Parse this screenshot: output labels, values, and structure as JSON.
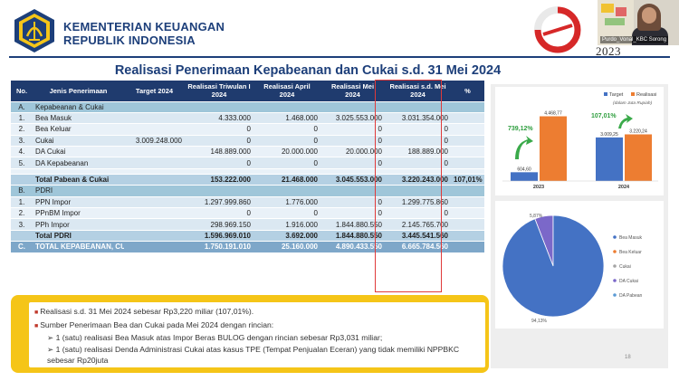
{
  "header": {
    "ministry_line1": "KEMENTERIAN KEUANGAN",
    "ministry_line2": "REPUBLIK INDONESIA",
    "year_badge": "2023",
    "video_caption": "Purdo_Vonal_KBC Sorong"
  },
  "title": "Realisasi Penerimaan Kepabeanan dan Cukai s.d. 31 Mei 2024",
  "table": {
    "headers": [
      "No.",
      "Jenis Penerimaan",
      "Target 2024",
      "Realisasi Triwulan I 2024",
      "Realisasi April 2024",
      "Realisasi Mei 2024",
      "Realisasi s.d. Mei 2024",
      "%"
    ],
    "sec_a": {
      "no": "A.",
      "label": "Kepabeanan & Cukai"
    },
    "rows_a": [
      {
        "no": "1.",
        "name": "Bea Masuk",
        "target": "",
        "tw1": "4.333.000",
        "april": "1.468.000",
        "mei": "3.025.553.000",
        "sd": "3.031.354.000",
        "pct": ""
      },
      {
        "no": "2.",
        "name": "Bea Keluar",
        "target": "",
        "tw1": "0",
        "april": "0",
        "mei": "0",
        "sd": "0",
        "pct": ""
      },
      {
        "no": "3.",
        "name": "Cukai",
        "target": "3.009.248.000",
        "tw1": "0",
        "april": "0",
        "mei": "0",
        "sd": "0",
        "pct": ""
      },
      {
        "no": "4.",
        "name": "DA Cukai",
        "target": "",
        "tw1": "148.889.000",
        "april": "20.000.000",
        "mei": "20.000.000",
        "sd": "188.889.000",
        "pct": ""
      },
      {
        "no": "5.",
        "name": "DA Kepabeanan",
        "target": "",
        "tw1": "0",
        "april": "0",
        "mei": "0",
        "sd": "0",
        "pct": ""
      }
    ],
    "total_a": {
      "name": "Total Pabean & Cukai",
      "tw1": "153.222.000",
      "april": "21.468.000",
      "mei": "3.045.553.000",
      "sd": "3.220.243.000",
      "pct": "107,01%"
    },
    "sec_b": {
      "no": "B.",
      "label": "PDRI"
    },
    "rows_b": [
      {
        "no": "1.",
        "name": "PPN Impor",
        "tw1": "1.297.999.860",
        "april": "1.776.000",
        "mei": "0",
        "sd": "1.299.775.860"
      },
      {
        "no": "2.",
        "name": "PPnBM Impor",
        "tw1": "0",
        "april": "0",
        "mei": "0",
        "sd": "0"
      },
      {
        "no": "3.",
        "name": "PPh Impor",
        "tw1": "298.969.150",
        "april": "1.916.000",
        "mei": "1.844.880.550",
        "sd": "2.145.765.700"
      }
    ],
    "total_b": {
      "name": "Total PDRI",
      "tw1": "1.596.969.010",
      "april": "3.692.000",
      "mei": "1.844.880.550",
      "sd": "3.445.541.560"
    },
    "grand": {
      "no": "C.",
      "name": "TOTAL KEPABEANAN, CUKAI, DAN PDRI",
      "tw1": "1.750.191.010",
      "april": "25.160.000",
      "mei": "4.890.433.550",
      "sd": "6.665.784.560"
    }
  },
  "notes": {
    "bullet1": "Realisasi s.d. 31 Mei 2024 sebesar Rp3,220 miliar (107,01%).",
    "bullet2": "Sumber Penerimaan Bea dan Cukai pada Mei 2024 dengan rincian:",
    "sub1": "1 (satu) realisasi Bea Masuk atas Impor Beras BULOG dengan rincian sebesar Rp3,031 miliar;",
    "sub2": "1 (satu) realisasi Denda Administrasi Cukai atas kasus TPE (Tempat Penjualan Eceran) yang tidak memiliki NPPBKC sebesar Rp20juta"
  },
  "page_number": "18",
  "chart_data": [
    {
      "type": "bar",
      "categories": [
        "2023",
        "2024"
      ],
      "series": [
        {
          "name": "Target",
          "values": [
            604.6,
            3009.25
          ],
          "labels": [
            "604,60",
            "3.009,25"
          ],
          "color": "#4472c4"
        },
        {
          "name": "Realisasi",
          "values": [
            4468.77,
            3220.24
          ],
          "labels": [
            "4.468,77",
            "3.220,24"
          ],
          "color": "#ed7d31"
        }
      ],
      "subtitle": "(dalam Juta Rupiah)",
      "annotations": [
        "739,12%",
        "107,01%"
      ],
      "ylim": [
        0,
        5000
      ],
      "legend": "top-right",
      "grid": false
    },
    {
      "type": "pie",
      "categories": [
        "Bea Masuk",
        "Bea Keluar",
        "Cukai",
        "DA Cukai",
        "DA Pabean"
      ],
      "values": [
        94.13,
        0,
        0,
        5.87,
        0
      ],
      "labels": [
        "94,13%",
        "",
        "",
        "5,87%",
        ""
      ],
      "colors": [
        "#4472c4",
        "#ed7d31",
        "#a5a5a5",
        "#7b68c9",
        "#5b9bd5"
      ],
      "legend": "right"
    }
  ]
}
